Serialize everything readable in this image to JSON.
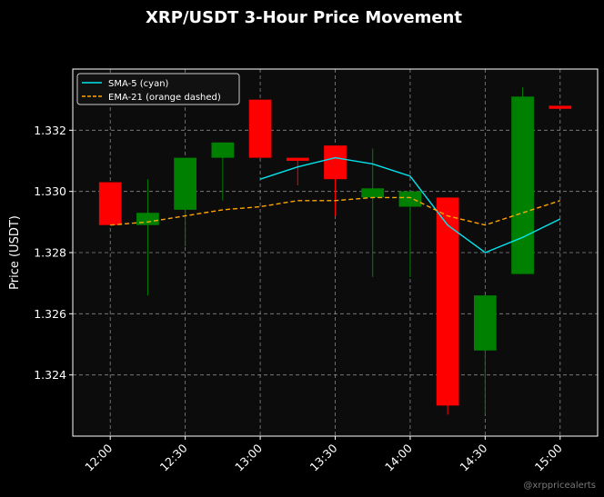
{
  "chart_data": {
    "type": "candlestick",
    "title": "XRP/USDT 3-Hour Price Movement",
    "ylabel": "Price (USDT)",
    "xlabel": "",
    "x_ticks": [
      "12:00",
      "12:30",
      "13:00",
      "13:30",
      "14:00",
      "14:30",
      "15:00"
    ],
    "y_ticks": [
      "1.324",
      "1.326",
      "1.328",
      "1.330",
      "1.332"
    ],
    "ylim": [
      1.322,
      1.334
    ],
    "xlim_minutes": [
      -15,
      195
    ],
    "grid": true,
    "legend_position": "top-left",
    "colors": {
      "up": "#008000",
      "down": "#ff0000",
      "sma": "#00e5ee",
      "ema": "#ffa500",
      "grid": "#b0b0b0",
      "plot_bg": "#0c0c0c",
      "page_bg": "#000000"
    },
    "candles": [
      {
        "t": 0,
        "open": 1.3303,
        "high": 1.3303,
        "low": 1.3289,
        "close": 1.3289
      },
      {
        "t": 15,
        "open": 1.3289,
        "high": 1.3304,
        "low": 1.3266,
        "close": 1.3293
      },
      {
        "t": 30,
        "open": 1.3294,
        "high": 1.3311,
        "low": 1.3282,
        "close": 1.3311
      },
      {
        "t": 45,
        "open": 1.3311,
        "high": 1.3316,
        "low": 1.3297,
        "close": 1.3316
      },
      {
        "t": 60,
        "open": 1.333,
        "high": 1.333,
        "low": 1.3311,
        "close": 1.3311
      },
      {
        "t": 75,
        "open": 1.3311,
        "high": 1.3311,
        "low": 1.3302,
        "close": 1.331
      },
      {
        "t": 90,
        "open": 1.3315,
        "high": 1.3315,
        "low": 1.3292,
        "close": 1.3304
      },
      {
        "t": 105,
        "open": 1.3298,
        "high": 1.3314,
        "low": 1.3272,
        "close": 1.3301
      },
      {
        "t": 120,
        "open": 1.3295,
        "high": 1.33,
        "low": 1.3272,
        "close": 1.33
      },
      {
        "t": 135,
        "open": 1.3298,
        "high": 1.3298,
        "low": 1.3227,
        "close": 1.323
      },
      {
        "t": 150,
        "open": 1.3248,
        "high": 1.3266,
        "low": 1.3227,
        "close": 1.3266
      },
      {
        "t": 165,
        "open": 1.3273,
        "high": 1.3334,
        "low": 1.3273,
        "close": 1.3331
      },
      {
        "t": 180,
        "open": 1.3328,
        "high": 1.3328,
        "low": 1.3327,
        "close": 1.3327
      }
    ],
    "series": [
      {
        "name": "SMA-5 (cyan)",
        "style": "solid",
        "color": "#00e5ee",
        "points": [
          [
            60,
            1.3304
          ],
          [
            75,
            1.3308
          ],
          [
            90,
            1.3311
          ],
          [
            105,
            1.3309
          ],
          [
            120,
            1.3305
          ],
          [
            135,
            1.3289
          ],
          [
            150,
            1.328
          ],
          [
            165,
            1.3285
          ],
          [
            180,
            1.3291
          ]
        ]
      },
      {
        "name": "EMA-21 (orange dashed)",
        "style": "dashed",
        "color": "#ffa500",
        "points": [
          [
            0,
            1.3289
          ],
          [
            15,
            1.329
          ],
          [
            30,
            1.3292
          ],
          [
            45,
            1.3294
          ],
          [
            60,
            1.3295
          ],
          [
            75,
            1.3297
          ],
          [
            90,
            1.3297
          ],
          [
            105,
            1.3298
          ],
          [
            120,
            1.3298
          ],
          [
            135,
            1.3292
          ],
          [
            150,
            1.3289
          ],
          [
            165,
            1.3293
          ],
          [
            180,
            1.3297
          ]
        ]
      }
    ],
    "watermark": "@xrppricealerts"
  }
}
